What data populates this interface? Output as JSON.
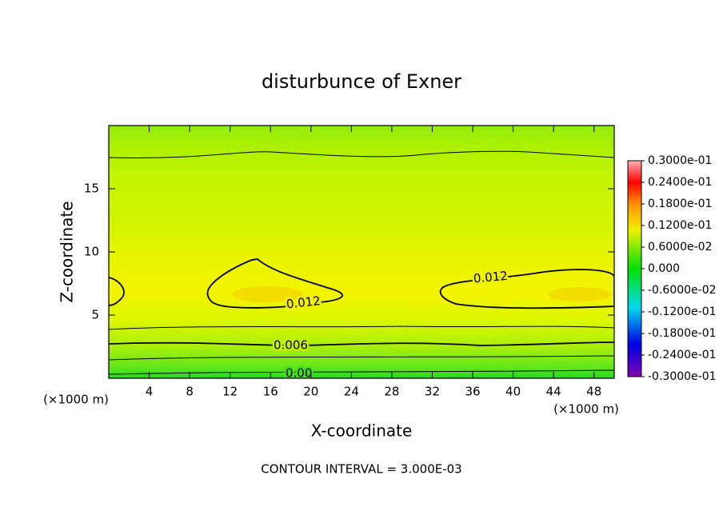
{
  "chart_data": {
    "type": "contour",
    "title": "disturbunce of Exner",
    "x_label": "X-coordinate",
    "y_label": "Z-coordinate",
    "x_unit_labels": [
      "(×1000 m)",
      "(×1000 m)"
    ],
    "annotation": "CONTOUR INTERVAL = 3.000E-03",
    "xlim": [
      0,
      50
    ],
    "xticks": [
      4,
      8,
      12,
      16,
      20,
      24,
      28,
      32,
      36,
      40,
      44,
      48
    ],
    "ylim": [
      0,
      20
    ],
    "yticks": [
      5,
      10,
      15
    ],
    "contour_levels": [
      0,
      0.003,
      0.006,
      0.009,
      0.012
    ],
    "contour_value_labels": [
      "0.00",
      null,
      "0.006",
      null,
      "0.012"
    ],
    "colorbar": {
      "lim": [
        -0.03,
        0.03
      ],
      "ticks": [
        {
          "value": 0.03,
          "label": "0.3000e-01"
        },
        {
          "value": 0.024,
          "label": "0.2400e-01"
        },
        {
          "value": 0.018,
          "label": "0.1800e-01"
        },
        {
          "value": 0.012,
          "label": "0.1200e-01"
        },
        {
          "value": 0.006,
          "label": "0.6000e-02"
        },
        {
          "value": 0,
          "label": "0.000"
        },
        {
          "value": -0.006,
          "label": "-0.6000e-02"
        },
        {
          "value": -0.012,
          "label": "-0.1200e-01"
        },
        {
          "value": -0.018,
          "label": "-0.1800e-01"
        },
        {
          "value": -0.024,
          "label": "-0.2400e-01"
        },
        {
          "value": -0.03,
          "label": "-0.3000e-01"
        }
      ]
    }
  }
}
